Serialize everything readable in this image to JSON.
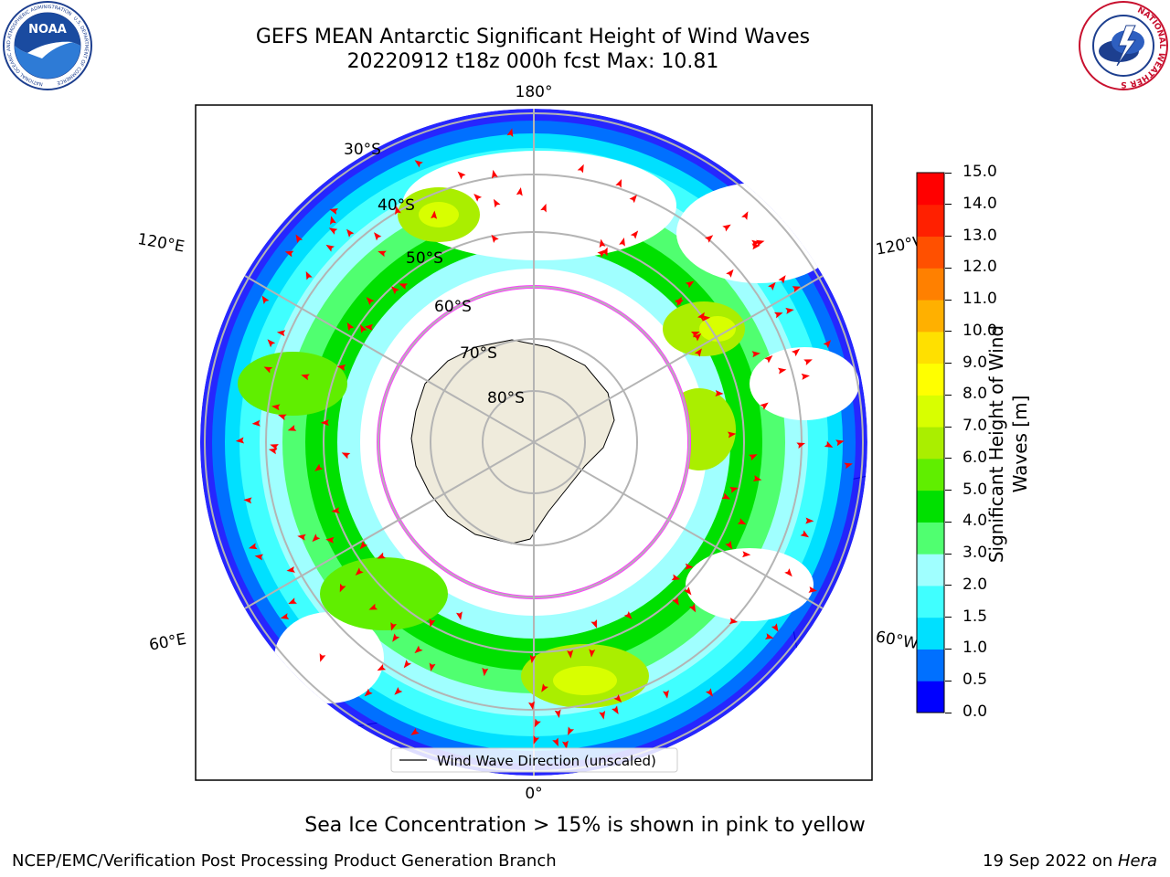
{
  "header": {
    "title_line1": "GEFS MEAN Antarctic Significant Height of Wind Waves",
    "title_line2": "20220912 t18z 000h fcst   Max: 10.81"
  },
  "logos": {
    "noaa": {
      "wordmark": "NOAA",
      "ring_text": "NATIONAL OCEANIC AND ATMOSPHERIC ADMINISTRATION",
      "ring_text_bottom": "U.S. DEPARTMENT OF COMMERCE"
    },
    "nws": {
      "ring_text": "NATIONAL WEATHER SERVICE"
    }
  },
  "map": {
    "longitude_labels": {
      "top": "180°",
      "bottom": "0°",
      "upper_left": "120°E",
      "lower_left": "60°E",
      "upper_right": "120°W",
      "lower_right": "60°W"
    },
    "latitude_labels": [
      "30°S",
      "40°S",
      "50°S",
      "60°S",
      "70°S",
      "80°S"
    ],
    "legend": "Wind Wave Direction (unscaled)",
    "arrow_color": "#ff0000",
    "land_color": "#efebdc",
    "ice_color": "#ff40ff"
  },
  "colorbar": {
    "label": "Significant Height of Wind Waves [m]",
    "label_line1": "Significant Height of Wind",
    "label_line2": "Waves [m]",
    "ticks": [
      "0.0",
      "0.5",
      "1.0",
      "1.5",
      "2.0",
      "3.0",
      "4.0",
      "5.0",
      "6.0",
      "7.0",
      "8.0",
      "9.0",
      "10.0",
      "11.0",
      "12.0",
      "13.0",
      "14.0",
      "15.0"
    ],
    "colors": [
      "#0000ff",
      "#0070ff",
      "#00e0ff",
      "#40ffff",
      "#a0ffff",
      "#50ff70",
      "#00e000",
      "#60ee00",
      "#aaee00",
      "#d8ff00",
      "#ffff00",
      "#ffe000",
      "#ffb000",
      "#ff8000",
      "#ff5000",
      "#ff2000",
      "#ff0000"
    ]
  },
  "notes": {
    "sea_ice": "Sea Ice Concentration > 15% is shown in pink to yellow"
  },
  "footer": {
    "left": "NCEP/EMC/Verification Post Processing Product Generation Branch",
    "right_date": "19 Sep 2022 on ",
    "right_host": "Hera"
  }
}
